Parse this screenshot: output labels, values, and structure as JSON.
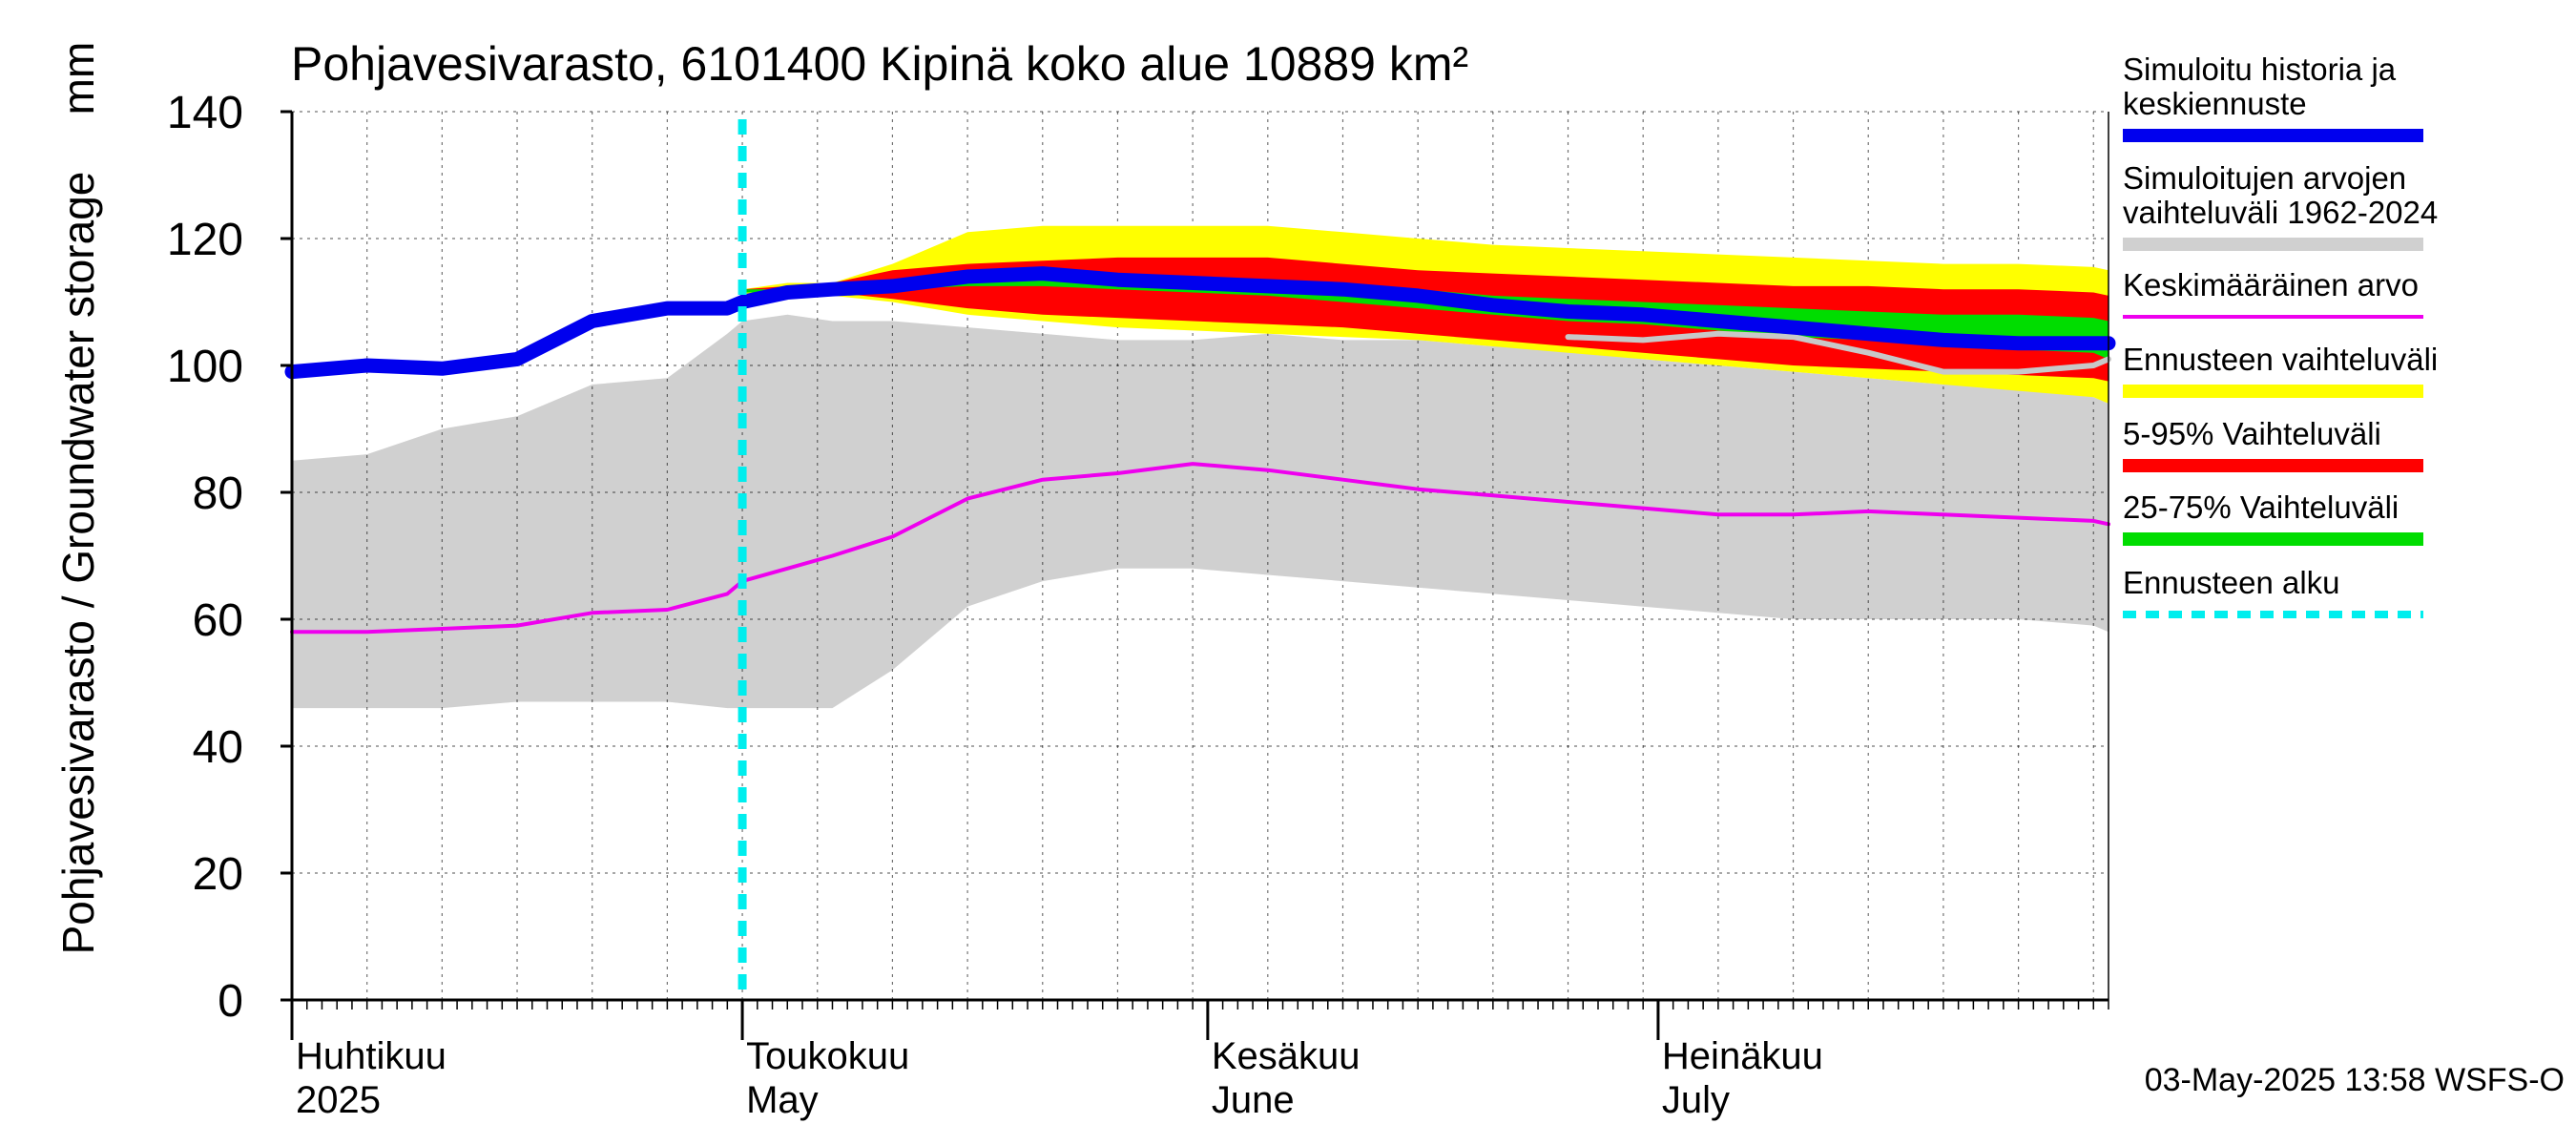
{
  "chart_data": {
    "type": "area",
    "title": "Pohjavesivarasto, 6101400 Kipinä koko alue 10889 km²",
    "ylabel": "Pohjavesivarasto / Groundwater storage",
    "yunit": "mm",
    "ylim": [
      0,
      140
    ],
    "yticks": [
      0,
      20,
      40,
      60,
      80,
      100,
      120,
      140
    ],
    "x_days": [
      0,
      5,
      10,
      15,
      20,
      25,
      29,
      30,
      33,
      36,
      40,
      45,
      50,
      55,
      60,
      65,
      70,
      75,
      80,
      85,
      90,
      95,
      100,
      105,
      110,
      115,
      120,
      121
    ],
    "xlim": [
      0,
      121
    ],
    "months": [
      {
        "fi": "Huhtikuu",
        "en": "2025",
        "day": 0
      },
      {
        "fi": "Toukokuu",
        "en": "May",
        "day": 30
      },
      {
        "fi": "Kesäkuu",
        "en": "June",
        "day": 61
      },
      {
        "fi": "Heinäkuu",
        "en": "July",
        "day": 91
      }
    ],
    "forecast_start_day": 30,
    "series": [
      {
        "name": "Simuloitujen arvojen vaihteluväli 1962-2024 (max)",
        "values": [
          85,
          86,
          90,
          92,
          97,
          98,
          105,
          107,
          108,
          107,
          107,
          106,
          105,
          104,
          104,
          105,
          104,
          104,
          103,
          103,
          101,
          100,
          99,
          98,
          97,
          97,
          95,
          94
        ]
      },
      {
        "name": "Simuloitujen arvojen vaihteluväli 1962-2024 (min)",
        "values": [
          46,
          46,
          46,
          47,
          47,
          47,
          46,
          46,
          46,
          46,
          52,
          62,
          66,
          68,
          68,
          67,
          66,
          65,
          64,
          63,
          62,
          61,
          60,
          60,
          60,
          60,
          59,
          58
        ]
      },
      {
        "name": "Keskimääräinen arvo",
        "values": [
          58,
          58,
          58.5,
          59,
          61,
          61.5,
          64,
          66,
          68,
          70,
          73,
          79,
          82,
          83,
          84.5,
          83.5,
          82,
          80.5,
          79.5,
          78.5,
          77.5,
          76.5,
          76.5,
          77,
          76.5,
          76,
          75.5,
          75
        ]
      },
      {
        "name": "Simuloitu historia ja keskiennuste",
        "values": [
          99,
          100,
          99.5,
          101,
          107,
          109,
          109,
          110,
          111.5,
          112,
          112.5,
          114,
          114.5,
          113.5,
          113,
          112.5,
          112,
          111,
          109.5,
          108.5,
          108,
          107,
          106,
          105,
          104,
          103.5,
          103.5,
          103.5
        ]
      },
      {
        "name": "Ennusteen vaihteluväli (max)",
        "values": [
          null,
          null,
          null,
          null,
          null,
          null,
          null,
          112,
          113,
          113,
          116,
          121,
          122,
          122,
          122,
          122,
          121,
          120,
          119,
          118.5,
          118,
          117.5,
          117,
          116.5,
          116,
          116,
          115.5,
          115
        ]
      },
      {
        "name": "Ennusteen vaihteluväli (min)",
        "values": [
          null,
          null,
          null,
          null,
          null,
          null,
          null,
          111,
          111,
          111,
          110,
          108,
          107,
          106,
          105.5,
          105,
          104.5,
          104,
          103,
          102,
          101,
          100,
          99,
          98,
          97,
          96,
          95,
          94
        ]
      },
      {
        "name": "5-95% Vaihteluväli (max)",
        "values": [
          null,
          null,
          null,
          null,
          null,
          null,
          null,
          112,
          112.5,
          113,
          115,
          116,
          116.5,
          117,
          117,
          117,
          116,
          115,
          114.5,
          114,
          113.5,
          113,
          112.5,
          112.5,
          112,
          112,
          111.5,
          111
        ]
      },
      {
        "name": "5-95% Vaihteluväli (min)",
        "values": [
          null,
          null,
          null,
          null,
          null,
          null,
          null,
          111.5,
          111.5,
          111.5,
          110.5,
          109,
          108,
          107.5,
          107,
          106.5,
          106,
          105,
          104,
          103,
          102,
          101,
          100,
          99.5,
          99,
          98.5,
          98,
          97.5
        ]
      },
      {
        "name": "25-75% Vaihteluväli (max)",
        "values": [
          null,
          null,
          null,
          null,
          null,
          null,
          null,
          112,
          112,
          112.5,
          113.5,
          114.5,
          115,
          114.5,
          114,
          113.5,
          113,
          112,
          111,
          110.5,
          110,
          109.5,
          109,
          108.5,
          108,
          108,
          107.5,
          107
        ]
      },
      {
        "name": "25-75% Vaihteluväli (min)",
        "values": [
          null,
          null,
          null,
          null,
          null,
          null,
          null,
          111.5,
          111.5,
          112,
          112,
          112.5,
          112.5,
          112,
          111.5,
          111,
          110,
          109,
          108,
          107,
          106.5,
          105.5,
          104.5,
          104,
          103,
          102.5,
          102,
          101
        ]
      },
      {
        "name": "Simuloitu historia ja keskiennuste (harmaa)",
        "values": [
          null,
          null,
          null,
          null,
          null,
          null,
          null,
          null,
          null,
          null,
          null,
          null,
          null,
          null,
          null,
          null,
          null,
          null,
          null,
          104.5,
          104,
          105,
          104.5,
          102,
          99,
          99,
          100,
          101
        ]
      }
    ],
    "legend": [
      {
        "label": "Simuloitu historia ja keskiennuste",
        "color": "#0000ee"
      },
      {
        "label": "Simuloitujen arvojen vaihteluväli 1962-2024",
        "color": "#d0d0d0"
      },
      {
        "label": "Keskimääräinen arvo",
        "color": "#ee00ee"
      },
      {
        "label": "Ennusteen vaihteluväli",
        "color": "#ffff00"
      },
      {
        "label": "5-95% Vaihteluväli",
        "color": "#ff0000"
      },
      {
        "label": "25-75% Vaihteluväli",
        "color": "#00dd00"
      },
      {
        "label": "Ennusteen alku",
        "color": "#00eeee"
      }
    ],
    "legend_position": "right",
    "timestamp": "03-May-2025 13:58 WSFS-O"
  }
}
